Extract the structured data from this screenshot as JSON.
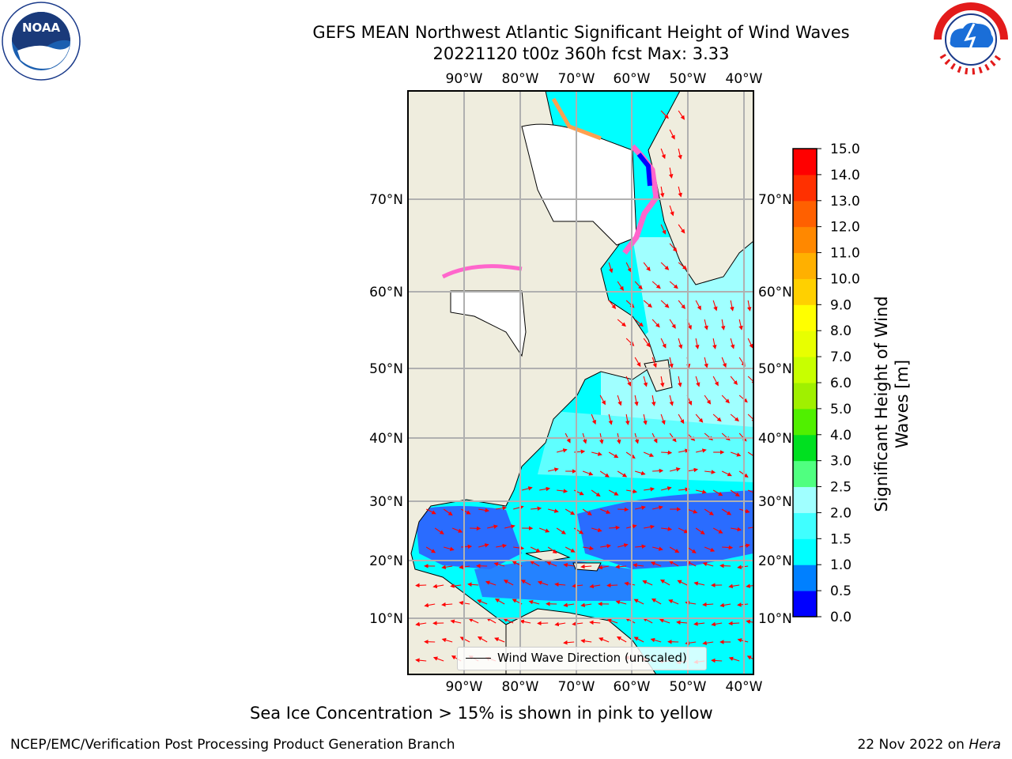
{
  "header": {
    "title_line1": "GEFS MEAN Northwest Atlantic Significant Height of Wind Waves",
    "title_line2": "20221120 t00z 360h fcst   Max: 3.33"
  },
  "logos": {
    "left": "noaa-logo",
    "right": "nws-logo"
  },
  "map": {
    "lon_labels": [
      "90°W",
      "80°W",
      "70°W",
      "60°W",
      "50°W",
      "40°W"
    ],
    "lat_labels": [
      "70°N",
      "60°N",
      "50°N",
      "40°N",
      "30°N",
      "20°N",
      "10°N"
    ],
    "legend_label": "Wind Wave Direction (unscaled)",
    "land_color": "#efedde",
    "ice_color": "#ff66cc",
    "arrow_color": "#ff0000"
  },
  "colorbar": {
    "label": "Significant Height of Wind Waves [m]",
    "ticks": [
      "0.0",
      "0.5",
      "1.0",
      "1.5",
      "2.0",
      "2.5",
      "3.0",
      "4.0",
      "5.0",
      "6.0",
      "7.0",
      "8.0",
      "9.0",
      "10.0",
      "11.0",
      "12.0",
      "13.0",
      "14.0",
      "15.0"
    ],
    "colors": [
      "#0000ff",
      "#0080ff",
      "#00ffff",
      "#40ffff",
      "#a0ffff",
      "#50ff80",
      "#00e020",
      "#50f000",
      "#a0f000",
      "#c8ff00",
      "#e8ff00",
      "#ffff00",
      "#ffd000",
      "#ffb000",
      "#ff8800",
      "#ff6000",
      "#ff3000",
      "#ff0000"
    ]
  },
  "footer": {
    "caption": "Sea Ice Concentration > 15% is shown in pink to yellow",
    "left": "NCEP/EMC/Verification Post Processing Product Generation Branch",
    "right_date": "22 Nov 2022 on ",
    "right_host": "Hera"
  }
}
